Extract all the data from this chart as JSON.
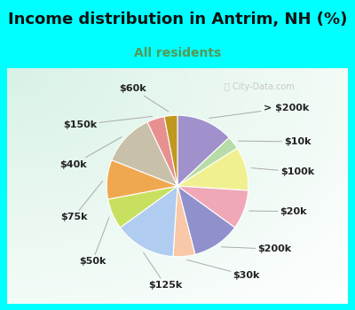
{
  "title": "Income distribution in Antrim, NH (%)",
  "subtitle": "All residents",
  "bg_outer": "#00FFFF",
  "slices": [
    {
      "label": "> $200k",
      "value": 13,
      "color": "#a090cc"
    },
    {
      "label": "$10k",
      "value": 3,
      "color": "#b8dca8"
    },
    {
      "label": "$100k",
      "value": 10,
      "color": "#f0f090"
    },
    {
      "label": "$20k",
      "value": 9,
      "color": "#f0a8b8"
    },
    {
      "label": "$200k",
      "value": 11,
      "color": "#9090cc"
    },
    {
      "label": "$30k",
      "value": 5,
      "color": "#f8c8a8"
    },
    {
      "label": "$125k",
      "value": 14,
      "color": "#b0ccf0"
    },
    {
      "label": "$50k",
      "value": 7,
      "color": "#c8e060"
    },
    {
      "label": "$75k",
      "value": 9,
      "color": "#f0a850"
    },
    {
      "label": "$40k",
      "value": 12,
      "color": "#c8c0a8"
    },
    {
      "label": "$150k",
      "value": 4,
      "color": "#e89090"
    },
    {
      "label": "$60k",
      "value": 3,
      "color": "#c09820"
    }
  ],
  "title_fontsize": 13,
  "subtitle_fontsize": 10,
  "label_fontsize": 8,
  "title_color": "#111111",
  "subtitle_color": "#559955",
  "watermark_color": "#bbbbbb",
  "label_color": "#222222",
  "line_color": "#aaaaaa"
}
